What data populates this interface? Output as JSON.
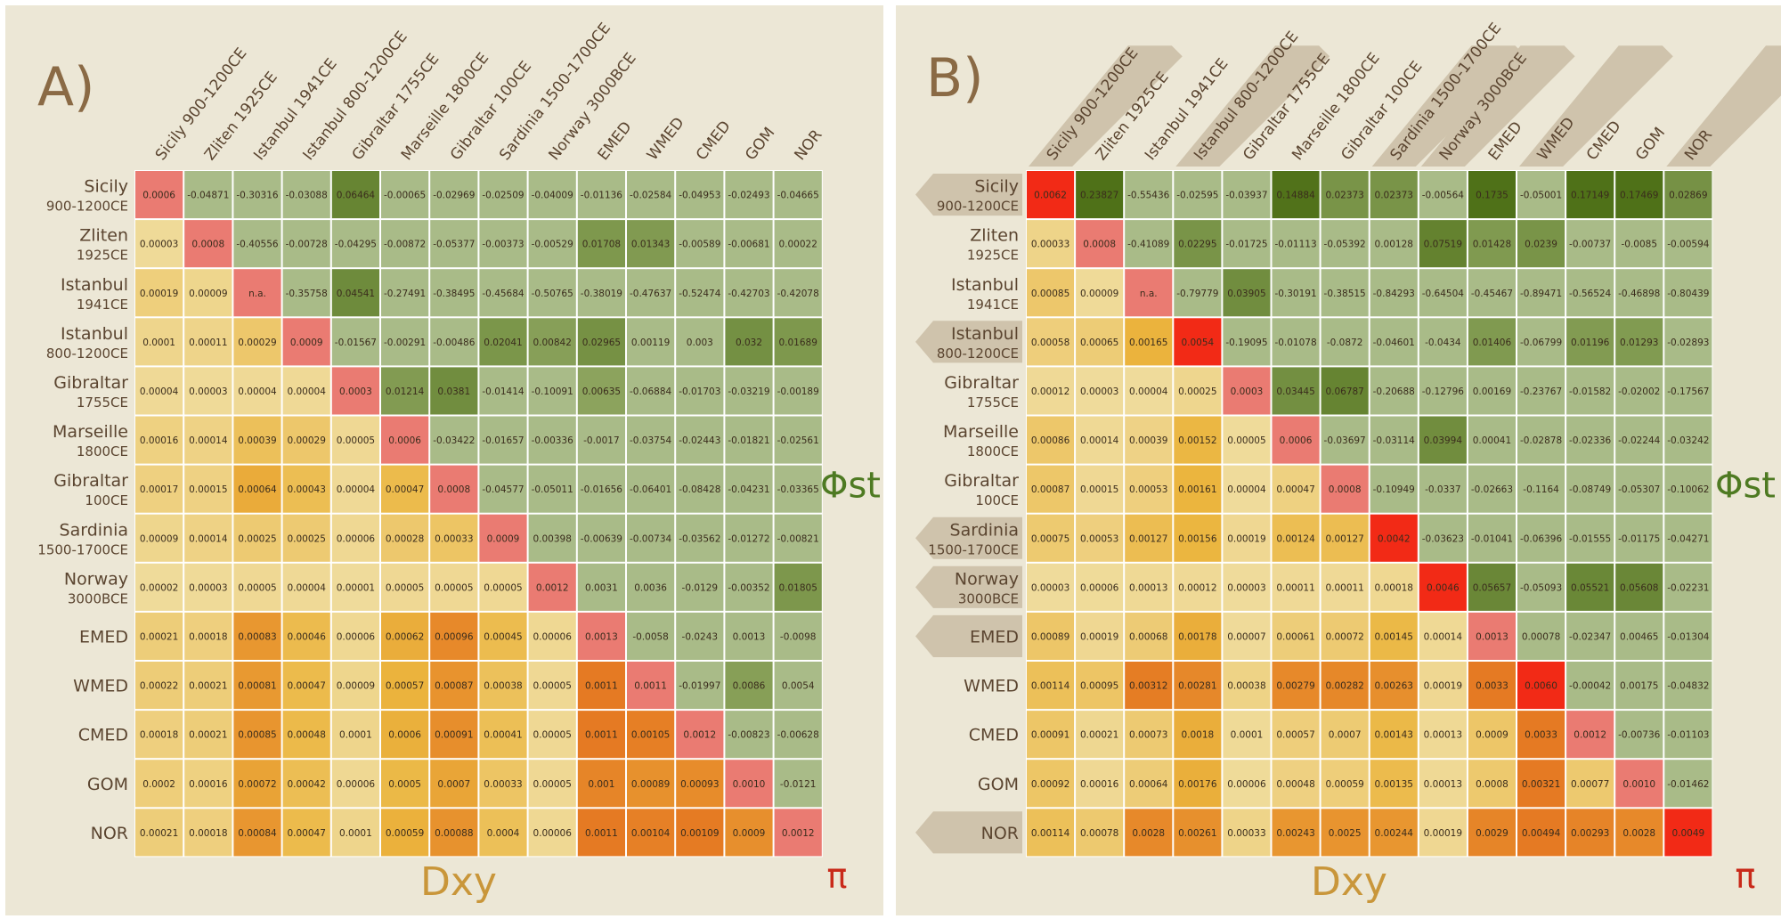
{
  "figure": {
    "legend_fst": "Φst",
    "legend_dxy": "Dxy",
    "legend_pi": "π",
    "colors": {
      "background": "#ece7d6",
      "title": "#8a6a45",
      "label": "#5b4530",
      "fst_legend": "#4e7a22",
      "dxy_legend": "#c9963a",
      "pi_legend": "#c92a1a",
      "tab": "#cfc3ac",
      "cell_text": "#3a2c1c"
    }
  },
  "chart_data": [
    {
      "type": "heatmap",
      "title": "A)",
      "column_labels": [
        "Sicily 900-1200CE",
        "Zliten 1925CE",
        "Istanbul 1941CE",
        "Istanbul 800-1200CE",
        "Gibraltar 1755CE",
        "Marseille 1800CE",
        "Gibraltar 100CE",
        "Sardinia 1500-1700CE",
        "Norway 3000BCE",
        "EMED",
        "WMED",
        "CMED",
        "GOM",
        "NOR"
      ],
      "row_labels": [
        {
          "line1": "Sicily",
          "line2": "900-1200CE"
        },
        {
          "line1": "Zliten",
          "line2": "1925CE"
        },
        {
          "line1": "Istanbul",
          "line2": "1941CE"
        },
        {
          "line1": "Istanbul",
          "line2": "800-1200CE"
        },
        {
          "line1": "Gibraltar",
          "line2": "1755CE"
        },
        {
          "line1": "Marseille",
          "line2": "1800CE"
        },
        {
          "line1": "Gibraltar",
          "line2": "100CE"
        },
        {
          "line1": "Sardinia",
          "line2": "1500-1700CE"
        },
        {
          "line1": "Norway",
          "line2": "3000BCE"
        },
        {
          "line1": "EMED",
          "line2": ""
        },
        {
          "line1": "WMED",
          "line2": ""
        },
        {
          "line1": "CMED",
          "line2": ""
        },
        {
          "line1": "GOM",
          "line2": ""
        },
        {
          "line1": "NOR",
          "line2": ""
        }
      ],
      "tabbed_rows": [],
      "tabbed_columns": [],
      "matrix": [
        [
          "0.0006",
          "-0.04871",
          "-0.30316",
          "-0.03088",
          "0.06464",
          "-0.00065",
          "-0.02969",
          "-0.02509",
          "-0.04009",
          "-0.01136",
          "-0.02584",
          "-0.04953",
          "-0.02493",
          "-0.04665"
        ],
        [
          "0.00003",
          "0.0008",
          "-0.40556",
          "-0.00728",
          "-0.04295",
          "-0.00872",
          "-0.05377",
          "-0.00373",
          "-0.00529",
          "0.01708",
          "0.01343",
          "-0.00589",
          "-0.00681",
          "0.00022"
        ],
        [
          "0.00019",
          "0.00009",
          "n.a.",
          "-0.35758",
          "0.04541",
          "-0.27491",
          "-0.38495",
          "-0.45684",
          "-0.50765",
          "-0.38019",
          "-0.47637",
          "-0.52474",
          "-0.42703",
          "-0.42078"
        ],
        [
          "0.0001",
          "0.00011",
          "0.00029",
          "0.0009",
          "-0.01567",
          "-0.00291",
          "-0.00486",
          "0.02041",
          "0.00842",
          "0.02965",
          "0.00119",
          "0.003",
          "0.032",
          "0.01689"
        ],
        [
          "0.00004",
          "0.00003",
          "0.00004",
          "0.00004",
          "0.0003",
          "0.01214",
          "0.0381",
          "-0.01414",
          "-0.10091",
          "0.00635",
          "-0.06884",
          "-0.01703",
          "-0.03219",
          "-0.00189"
        ],
        [
          "0.00016",
          "0.00014",
          "0.00039",
          "0.00029",
          "0.00005",
          "0.0006",
          "-0.03422",
          "-0.01657",
          "-0.00336",
          "-0.0017",
          "-0.03754",
          "-0.02443",
          "-0.01821",
          "-0.02561"
        ],
        [
          "0.00017",
          "0.00015",
          "0.00064",
          "0.00043",
          "0.00004",
          "0.00047",
          "0.0008",
          "-0.04577",
          "-0.05011",
          "-0.01656",
          "-0.06401",
          "-0.08428",
          "-0.04231",
          "-0.03365"
        ],
        [
          "0.00009",
          "0.00014",
          "0.00025",
          "0.00025",
          "0.00006",
          "0.00028",
          "0.00033",
          "0.0009",
          "0.00398",
          "-0.00639",
          "-0.00734",
          "-0.03562",
          "-0.01272",
          "-0.00821"
        ],
        [
          "0.00002",
          "0.00003",
          "0.00005",
          "0.00004",
          "0.00001",
          "0.00005",
          "0.00005",
          "0.00005",
          "0.0012",
          "0.0031",
          "0.0036",
          "-0.0129",
          "-0.00352",
          "0.01805"
        ],
        [
          "0.00021",
          "0.00018",
          "0.00083",
          "0.00046",
          "0.00006",
          "0.00062",
          "0.00096",
          "0.00045",
          "0.00006",
          "0.0013",
          "-0.0058",
          "-0.0243",
          "0.0013",
          "-0.0098"
        ],
        [
          "0.00022",
          "0.00021",
          "0.00081",
          "0.00047",
          "0.00009",
          "0.00057",
          "0.00087",
          "0.00038",
          "0.00005",
          "0.0011",
          "0.0011",
          "-0.01997",
          "0.0086",
          "0.0054"
        ],
        [
          "0.00018",
          "0.00021",
          "0.00085",
          "0.00048",
          "0.0001",
          "0.0006",
          "0.00091",
          "0.00041",
          "0.00005",
          "0.0011",
          "0.00105",
          "0.0012",
          "-0.00823",
          "-0.00628"
        ],
        [
          "0.0002",
          "0.00016",
          "0.00072",
          "0.00042",
          "0.00006",
          "0.0005",
          "0.0007",
          "0.00033",
          "0.00005",
          "0.001",
          "0.00089",
          "0.00093",
          "0.0010",
          "-0.0121"
        ],
        [
          "0.00021",
          "0.00018",
          "0.00084",
          "0.00047",
          "0.0001",
          "0.00059",
          "0.00088",
          "0.0004",
          "0.00006",
          "0.0011",
          "0.00104",
          "0.00109",
          "0.0009",
          "0.0012"
        ]
      ]
    },
    {
      "type": "heatmap",
      "title": "B)",
      "column_labels": [
        "Sicily 900-1200CE",
        "Zliten 1925CE",
        "Istanbul 1941CE",
        "Istanbul 800-1200CE",
        "Gibraltar 1755CE",
        "Marseille 1800CE",
        "Gibraltar 100CE",
        "Sardinia 1500-1700CE",
        "Norway 3000BCE",
        "EMED",
        "WMED",
        "CMED",
        "GOM",
        "NOR"
      ],
      "row_labels": [
        {
          "line1": "Sicily",
          "line2": "900-1200CE"
        },
        {
          "line1": "Zliten",
          "line2": "1925CE"
        },
        {
          "line1": "Istanbul",
          "line2": "1941CE"
        },
        {
          "line1": "Istanbul",
          "line2": "800-1200CE"
        },
        {
          "line1": "Gibraltar",
          "line2": "1755CE"
        },
        {
          "line1": "Marseille",
          "line2": "1800CE"
        },
        {
          "line1": "Gibraltar",
          "line2": "100CE"
        },
        {
          "line1": "Sardinia",
          "line2": "1500-1700CE"
        },
        {
          "line1": "Norway",
          "line2": "3000BCE"
        },
        {
          "line1": "EMED",
          "line2": ""
        },
        {
          "line1": "WMED",
          "line2": ""
        },
        {
          "line1": "CMED",
          "line2": ""
        },
        {
          "line1": "GOM",
          "line2": ""
        },
        {
          "line1": "NOR",
          "line2": ""
        }
      ],
      "tabbed_rows": [
        0,
        3,
        7,
        8,
        9,
        13
      ],
      "tabbed_columns": [
        0,
        3,
        7,
        8,
        10,
        13
      ],
      "matrix": [
        [
          "0.0062",
          "0.23827",
          "-0.55436",
          "-0.02595",
          "-0.03937",
          "0.14884",
          "0.02373",
          "0.02373",
          "-0.00564",
          "0.1735",
          "-0.05001",
          "0.17149",
          "0.17469",
          "0.02869"
        ],
        [
          "0.00033",
          "0.0008",
          "-0.41089",
          "0.02295",
          "-0.01725",
          "-0.01113",
          "-0.05392",
          "0.00128",
          "0.07519",
          "0.01428",
          "0.0239",
          "-0.00737",
          "-0.0085",
          "-0.00594"
        ],
        [
          "0.00085",
          "0.00009",
          "n.a.",
          "-0.79779",
          "0.03905",
          "-0.30191",
          "-0.38515",
          "-0.84293",
          "-0.64504",
          "-0.45467",
          "-0.89471",
          "-0.56524",
          "-0.46898",
          "-0.80439"
        ],
        [
          "0.00058",
          "0.00065",
          "0.00165",
          "0.0054",
          "-0.19095",
          "-0.01078",
          "-0.0872",
          "-0.04601",
          "-0.0434",
          "0.01406",
          "-0.06799",
          "0.01196",
          "0.01293",
          "-0.02893"
        ],
        [
          "0.00012",
          "0.00003",
          "0.00004",
          "0.00025",
          "0.0003",
          "0.03445",
          "0.06787",
          "-0.20688",
          "-0.12796",
          "0.00169",
          "-0.23767",
          "-0.01582",
          "-0.02002",
          "-0.17567"
        ],
        [
          "0.00086",
          "0.00014",
          "0.00039",
          "0.00152",
          "0.00005",
          "0.0006",
          "-0.03697",
          "-0.03114",
          "0.03994",
          "0.00041",
          "-0.02878",
          "-0.02336",
          "-0.02244",
          "-0.03242"
        ],
        [
          "0.00087",
          "0.00015",
          "0.00053",
          "0.00161",
          "0.00004",
          "0.00047",
          "0.0008",
          "-0.10949",
          "-0.0337",
          "-0.02663",
          "-0.1164",
          "-0.08749",
          "-0.05307",
          "-0.10062"
        ],
        [
          "0.00075",
          "0.00053",
          "0.00127",
          "0.00156",
          "0.00019",
          "0.00124",
          "0.00127",
          "0.0042",
          "-0.03623",
          "-0.01041",
          "-0.06396",
          "-0.01555",
          "-0.01175",
          "-0.04271"
        ],
        [
          "0.00003",
          "0.00006",
          "0.00013",
          "0.00012",
          "0.00003",
          "0.00011",
          "0.00011",
          "0.00018",
          "0.0046",
          "0.05657",
          "-0.05093",
          "0.05521",
          "0.05608",
          "-0.02231"
        ],
        [
          "0.00089",
          "0.00019",
          "0.00068",
          "0.00178",
          "0.00007",
          "0.00061",
          "0.00072",
          "0.00145",
          "0.00014",
          "0.0013",
          "0.00078",
          "-0.02347",
          "0.00465",
          "-0.01304"
        ],
        [
          "0.00114",
          "0.00095",
          "0.00312",
          "0.00281",
          "0.00038",
          "0.00279",
          "0.00282",
          "0.00263",
          "0.00019",
          "0.0033",
          "0.0060",
          "-0.00042",
          "0.00175",
          "-0.04832"
        ],
        [
          "0.00091",
          "0.00021",
          "0.00073",
          "0.0018",
          "0.0001",
          "0.00057",
          "0.0007",
          "0.00143",
          "0.00013",
          "0.0009",
          "0.0033",
          "0.0012",
          "-0.00736",
          "-0.01103"
        ],
        [
          "0.00092",
          "0.00016",
          "0.00064",
          "0.00176",
          "0.00006",
          "0.00048",
          "0.00059",
          "0.00135",
          "0.00013",
          "0.0008",
          "0.00321",
          "0.00077",
          "0.0010",
          "-0.01462"
        ],
        [
          "0.00114",
          "0.00078",
          "0.0028",
          "0.00261",
          "0.00033",
          "0.00243",
          "0.0025",
          "0.00244",
          "0.00019",
          "0.0029",
          "0.00494",
          "0.00293",
          "0.0028",
          "0.0049"
        ]
      ]
    }
  ]
}
